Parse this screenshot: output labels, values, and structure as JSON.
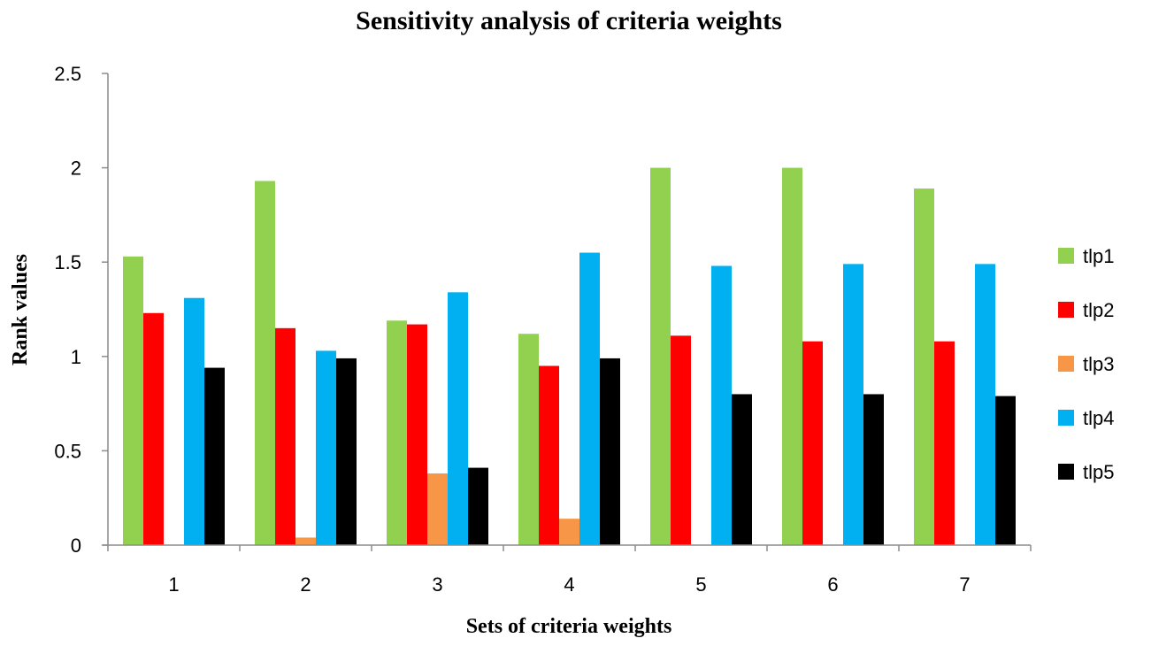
{
  "chart_data": {
    "type": "bar",
    "title": "Sensitivity analysis of criteria weights",
    "xlabel": "Sets of criteria weights",
    "ylabel": "Rank values",
    "categories": [
      "1",
      "2",
      "3",
      "4",
      "5",
      "6",
      "7"
    ],
    "ylim": [
      0,
      2.5
    ],
    "yticks": [
      0,
      0.5,
      1,
      1.5,
      2,
      2.5
    ],
    "ytick_labels": [
      "0",
      "0.5",
      "1",
      "1.5",
      "2",
      "2.5"
    ],
    "grid": false,
    "legend_position": "right",
    "series": [
      {
        "name": "tlp1",
        "color": "#92d050",
        "values": [
          1.53,
          1.93,
          1.19,
          1.12,
          2.0,
          2.0,
          1.89
        ]
      },
      {
        "name": "tlp2",
        "color": "#ff0000",
        "values": [
          1.23,
          1.15,
          1.17,
          0.95,
          1.11,
          1.08,
          1.08
        ]
      },
      {
        "name": "tlp3",
        "color": "#f79646",
        "values": [
          0,
          0.04,
          0.38,
          0.14,
          0,
          0,
          0
        ]
      },
      {
        "name": "tlp4",
        "color": "#00b0f0",
        "values": [
          1.31,
          1.03,
          1.34,
          1.55,
          1.48,
          1.49,
          1.49
        ]
      },
      {
        "name": "tlp5",
        "color": "#000000",
        "values": [
          0.94,
          0.99,
          0.41,
          0.99,
          0.8,
          0.8,
          0.79
        ]
      }
    ]
  }
}
